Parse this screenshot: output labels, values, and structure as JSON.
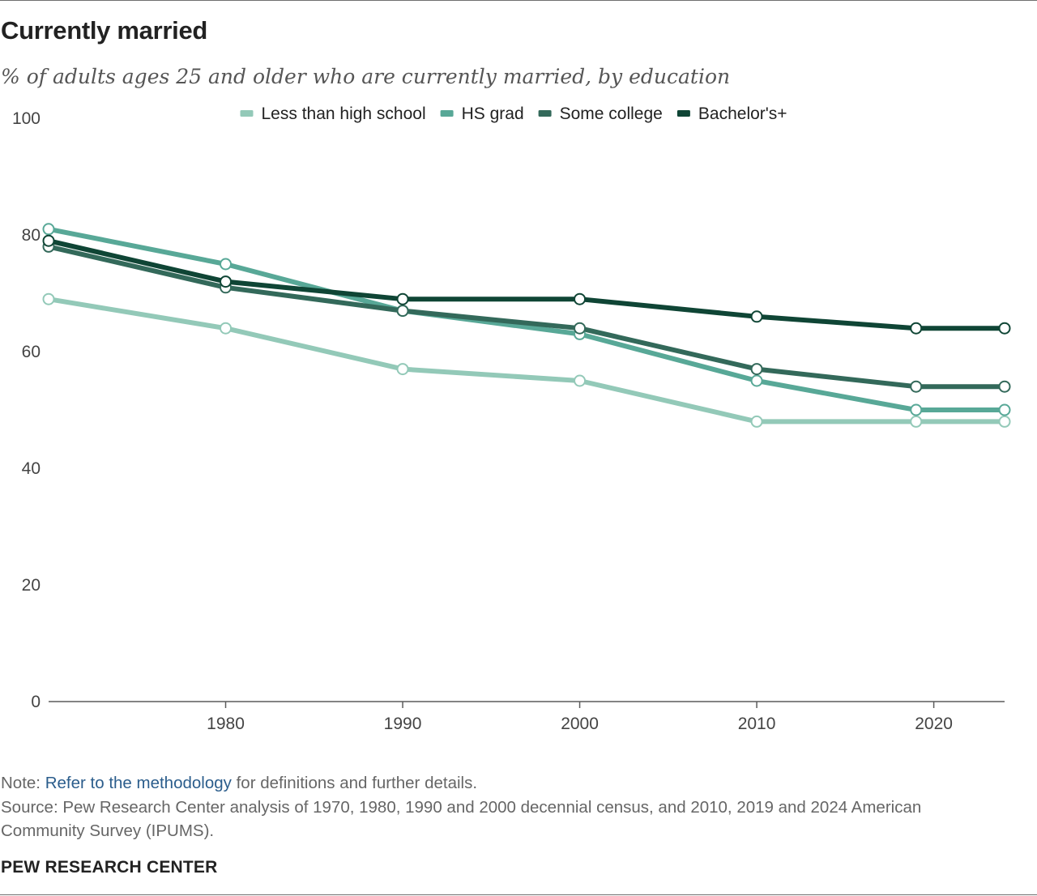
{
  "header": {
    "title": "Currently married",
    "subtitle": "% of adults ages 25 and older who are currently married, by education"
  },
  "footer": {
    "note_prefix": "Note: ",
    "note_link": "Refer to the methodology",
    "note_suffix": " for definitions and further details.",
    "source": "Source: Pew Research Center analysis of 1970, 1980, 1990 and 2000 decennial census, and 2010, 2019 and 2024 American Community Survey (IPUMS).",
    "brand": "PEW RESEARCH CENTER"
  },
  "chart_data": {
    "type": "line",
    "title": "Currently married",
    "subtitle": "% of adults ages 25 and older who are currently married, by education",
    "xlabel": "",
    "ylabel": "",
    "x": [
      1970,
      1980,
      1990,
      2000,
      2010,
      2019,
      2024
    ],
    "xlim": [
      1970,
      2024
    ],
    "ylim": [
      0,
      100
    ],
    "x_ticks": [
      1980,
      1990,
      2000,
      2010,
      2020
    ],
    "y_ticks": [
      0,
      20,
      40,
      60,
      80,
      100
    ],
    "grid": false,
    "legend_position": "top",
    "series": [
      {
        "name": "Less than high school",
        "color": "#93c9b8",
        "values": [
          69,
          64,
          57,
          55,
          48,
          48,
          48
        ]
      },
      {
        "name": "HS grad",
        "color": "#58a897",
        "values": [
          81,
          75,
          67,
          63,
          55,
          50,
          50
        ]
      },
      {
        "name": "Some college",
        "color": "#33695a",
        "values": [
          78,
          71,
          67,
          64,
          57,
          54,
          54
        ]
      },
      {
        "name": "Bachelor's+",
        "color": "#0f4535",
        "values": [
          79,
          72,
          69,
          69,
          66,
          64,
          64
        ]
      }
    ]
  }
}
